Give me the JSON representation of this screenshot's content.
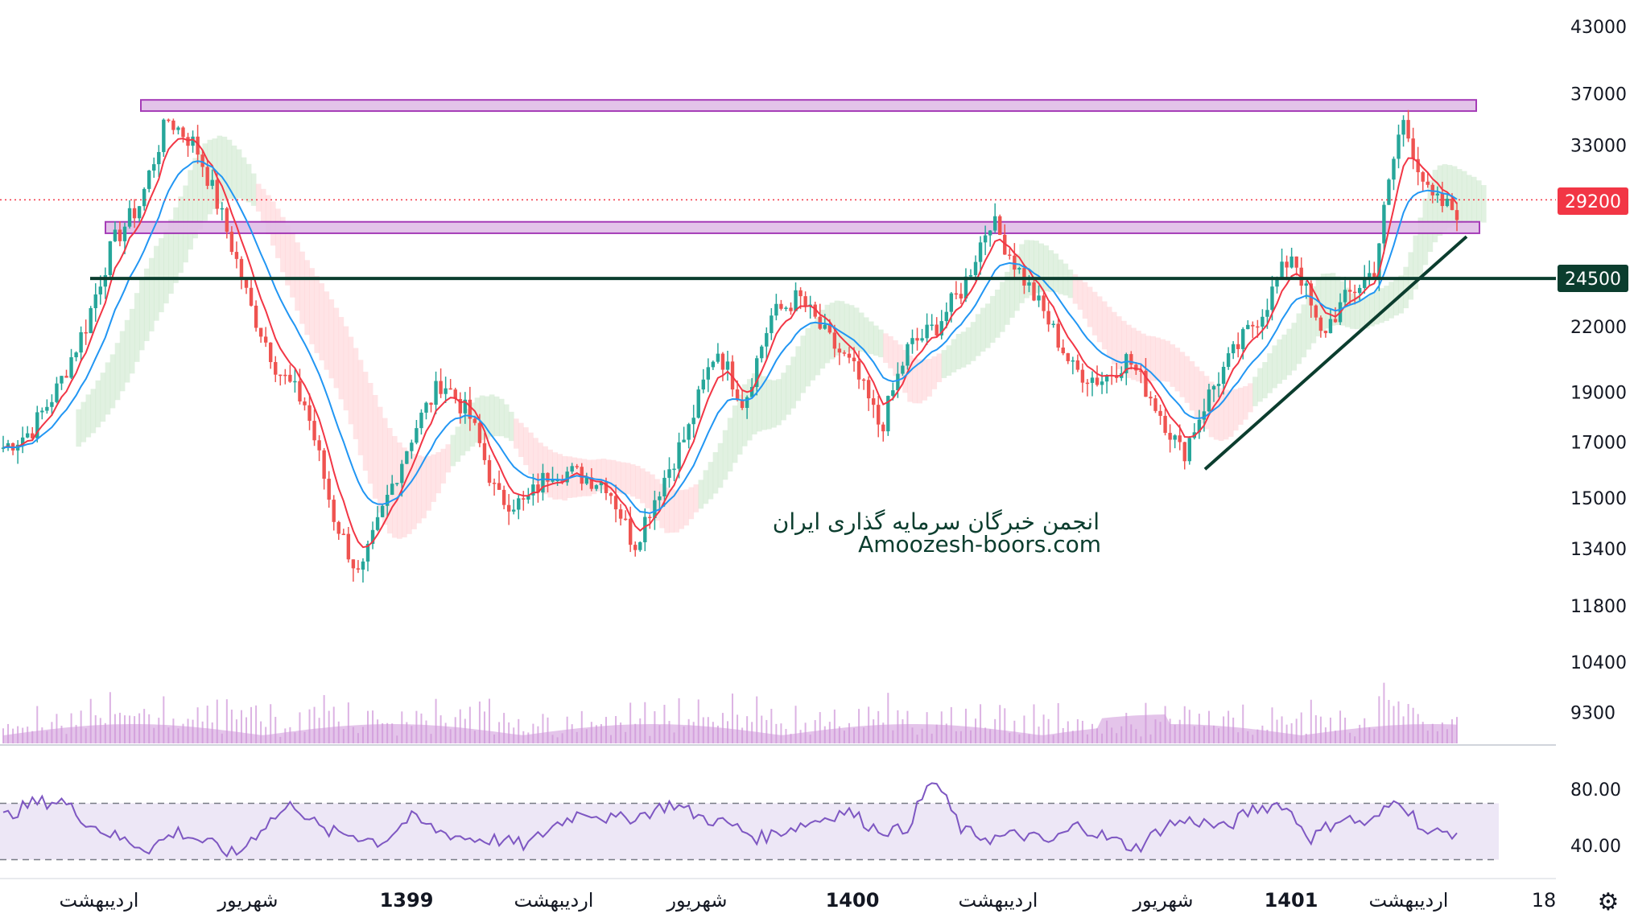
{
  "chart_data": {
    "type": "candlestick",
    "y_scale": "log",
    "price_axis_ticks": [
      "43000",
      "37000",
      "33000",
      "29200",
      "24500",
      "22000",
      "19000",
      "17000",
      "15000",
      "13400",
      "11800",
      "10400",
      "9300"
    ],
    "rsi_axis_ticks": [
      "80.00",
      "40.00"
    ],
    "time_axis_labels": [
      {
        "text": "اردیبهشت",
        "year": false
      },
      {
        "text": "شهریور",
        "year": false
      },
      {
        "text": "1399",
        "year": true
      },
      {
        "text": "اردیبهشت",
        "year": false
      },
      {
        "text": "شهریور",
        "year": false
      },
      {
        "text": "1400",
        "year": true
      },
      {
        "text": "اردیبهشت",
        "year": false
      },
      {
        "text": "شهریور",
        "year": false
      },
      {
        "text": "1401",
        "year": true
      },
      {
        "text": "اردیبهشت",
        "year": false
      },
      {
        "text": "18",
        "year": false
      }
    ],
    "last_price": "29200",
    "support_level": "24500",
    "resistance_bands": [
      [
        35600,
        36500
      ],
      [
        27100,
        27800
      ]
    ],
    "price_key_points": [
      16800,
      17400,
      19200,
      22000,
      26500,
      29000,
      35000,
      33000,
      28000,
      23000,
      20000,
      18500,
      14500,
      12500,
      15000,
      17500,
      19500,
      18000,
      15000,
      14800,
      16000,
      15800,
      15500,
      13500,
      15500,
      17500,
      21000,
      18500,
      22500,
      23500,
      21500,
      20000,
      17500,
      21000,
      22000,
      24000,
      28000,
      25000,
      22500,
      20000,
      19500,
      20500,
      18500,
      16500,
      19000,
      21000,
      23000,
      26000,
      21500,
      23500,
      25000,
      35000,
      29200,
      28500
    ],
    "rsi_key_points": [
      60,
      70,
      72,
      55,
      45,
      38,
      50,
      42,
      33,
      55,
      70,
      50,
      48,
      42,
      60,
      50,
      45,
      44,
      40,
      55,
      65,
      58,
      62,
      70,
      60,
      55,
      45,
      52,
      58,
      65,
      52,
      50,
      88,
      50,
      45,
      48,
      42,
      55,
      45,
      38,
      55,
      58,
      52,
      66,
      70,
      45,
      60,
      55,
      74,
      48,
      50
    ]
  },
  "overlay": {
    "last_price_label": "29200",
    "support_label": "24500",
    "watermark_line1": "انجمن خبرگان سرمایه گذاری ایران",
    "watermark_line2": "Amoozesh-boors.com"
  },
  "colors": {
    "up": "#26a69a",
    "down": "#ef5350",
    "ma_fast": "#f23645",
    "ma_slow": "#2196f3",
    "band_fill": "#e1bee7",
    "band_stroke": "#9c27b0",
    "support": "#0b3d2e",
    "rsi": "#7e57c2",
    "rsi_band": "#ede7f6",
    "volume": "#ce93d8",
    "cloud_green": "#c8e6c9",
    "cloud_red": "#ffcdd2"
  },
  "icons": {
    "settings": "gear-icon"
  }
}
